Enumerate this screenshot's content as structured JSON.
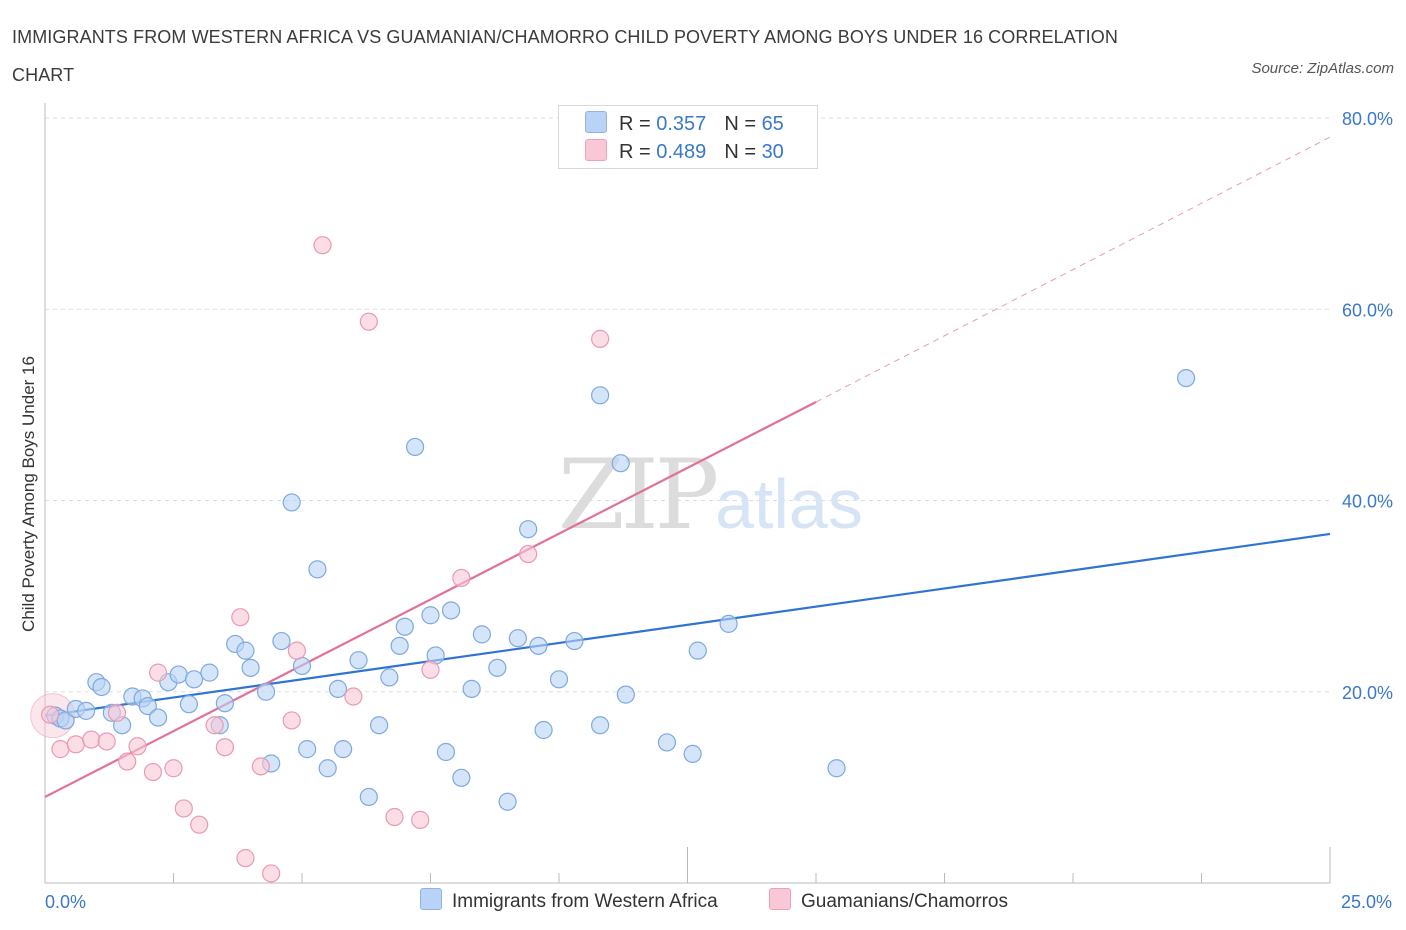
{
  "title": "IMMIGRANTS FROM WESTERN AFRICA VS GUAMANIAN/CHAMORRO CHILD POVERTY AMONG BOYS UNDER 16 CORRELATION CHART",
  "source": "Source: ZipAtlas.com",
  "watermark": {
    "zip": "ZIP",
    "atlas": "atlas"
  },
  "legend_top": [
    {
      "r_label": "R =",
      "r_value": "0.357",
      "n_label": "N =",
      "n_value": "65",
      "color": "#b8d3f5",
      "border": "#8fb4e3"
    },
    {
      "r_label": "R =",
      "r_value": "0.489",
      "n_label": "N =",
      "n_value": "30",
      "color": "#f9c7d6",
      "border": "#eea2b9"
    }
  ],
  "colors": {
    "blue_fill": "#b8d3f5",
    "blue_stroke": "#7fa9dd",
    "blue_line": "#2f74d0",
    "pink_fill": "#f9c7d6",
    "pink_stroke": "#e99ab2",
    "pink_line": "#e0719a",
    "axis_label": "#3a78c9"
  },
  "chart_data": {
    "type": "scatter",
    "xlabel": "",
    "ylabel": "Child Poverty Among Boys Under 16",
    "xlim": [
      0,
      25
    ],
    "ylim": [
      0,
      80
    ],
    "x_tick_labels": [
      "0.0%",
      "25.0%"
    ],
    "y_ticks": [
      20,
      40,
      60,
      80
    ],
    "y_tick_labels": [
      "20.0%",
      "40.0%",
      "60.0%",
      "80.0%"
    ],
    "grid": true,
    "series": [
      {
        "name": "Immigrants from Western Africa",
        "points": [
          [
            0.2,
            17.5
          ],
          [
            0.3,
            17.2
          ],
          [
            0.4,
            17.0
          ],
          [
            0.6,
            18.2
          ],
          [
            0.8,
            18.0
          ],
          [
            1.0,
            21.0
          ],
          [
            1.1,
            20.5
          ],
          [
            1.3,
            17.8
          ],
          [
            1.5,
            16.5
          ],
          [
            1.7,
            19.5
          ],
          [
            1.9,
            19.3
          ],
          [
            2.0,
            18.5
          ],
          [
            2.2,
            17.3
          ],
          [
            2.4,
            21.0
          ],
          [
            2.6,
            21.8
          ],
          [
            2.8,
            18.7
          ],
          [
            2.9,
            21.3
          ],
          [
            3.2,
            22.0
          ],
          [
            3.4,
            16.5
          ],
          [
            3.5,
            18.8
          ],
          [
            3.7,
            25.0
          ],
          [
            3.9,
            24.3
          ],
          [
            4.0,
            22.5
          ],
          [
            4.3,
            20.0
          ],
          [
            4.4,
            12.5
          ],
          [
            4.6,
            25.3
          ],
          [
            4.8,
            39.8
          ],
          [
            5.0,
            22.7
          ],
          [
            5.1,
            14.0
          ],
          [
            5.3,
            32.8
          ],
          [
            5.5,
            12.0
          ],
          [
            5.7,
            20.3
          ],
          [
            5.8,
            14.0
          ],
          [
            6.1,
            23.3
          ],
          [
            6.3,
            9.0
          ],
          [
            6.5,
            16.5
          ],
          [
            6.7,
            21.5
          ],
          [
            6.9,
            24.8
          ],
          [
            7.0,
            26.8
          ],
          [
            7.2,
            45.6
          ],
          [
            7.5,
            28.0
          ],
          [
            7.6,
            23.8
          ],
          [
            7.8,
            13.7
          ],
          [
            7.9,
            28.5
          ],
          [
            8.1,
            11.0
          ],
          [
            8.3,
            20.3
          ],
          [
            8.5,
            26.0
          ],
          [
            8.8,
            22.5
          ],
          [
            9.0,
            8.5
          ],
          [
            9.2,
            25.6
          ],
          [
            9.4,
            37.0
          ],
          [
            9.6,
            24.8
          ],
          [
            9.7,
            16.0
          ],
          [
            10.0,
            21.3
          ],
          [
            10.3,
            25.3
          ],
          [
            10.8,
            51.0
          ],
          [
            10.8,
            16.5
          ],
          [
            11.2,
            43.9
          ],
          [
            11.3,
            19.7
          ],
          [
            12.1,
            14.7
          ],
          [
            12.6,
            13.5
          ],
          [
            12.7,
            24.3
          ],
          [
            13.3,
            27.1
          ],
          [
            15.4,
            12.0
          ],
          [
            22.2,
            52.8
          ]
        ]
      },
      {
        "name": "Guamanians/Chamorros",
        "points": [
          [
            0.1,
            17.6
          ],
          [
            0.3,
            14.0
          ],
          [
            0.6,
            14.5
          ],
          [
            0.9,
            15.0
          ],
          [
            1.2,
            14.8
          ],
          [
            1.4,
            17.8
          ],
          [
            1.6,
            12.7
          ],
          [
            1.8,
            14.3
          ],
          [
            2.1,
            11.6
          ],
          [
            2.2,
            22.0
          ],
          [
            2.5,
            12.0
          ],
          [
            2.7,
            7.8
          ],
          [
            3.0,
            6.1
          ],
          [
            3.3,
            16.5
          ],
          [
            3.5,
            14.2
          ],
          [
            3.8,
            27.8
          ],
          [
            3.9,
            2.6
          ],
          [
            4.2,
            12.2
          ],
          [
            4.4,
            1.0
          ],
          [
            4.8,
            17.0
          ],
          [
            4.9,
            24.3
          ],
          [
            5.4,
            66.7
          ],
          [
            6.0,
            19.5
          ],
          [
            6.3,
            58.7
          ],
          [
            6.8,
            6.9
          ],
          [
            7.3,
            6.6
          ],
          [
            7.5,
            22.3
          ],
          [
            8.1,
            31.9
          ],
          [
            9.4,
            34.4
          ],
          [
            10.8,
            56.9
          ]
        ]
      }
    ],
    "trend_lines": [
      {
        "series": "Immigrants from Western Africa",
        "from": [
          0,
          17.5
        ],
        "to": [
          25,
          36.5
        ],
        "style": "solid"
      },
      {
        "series": "Guamanians/Chamorros",
        "from": [
          0,
          9.0
        ],
        "to": [
          15,
          50.3
        ],
        "style": "solid"
      },
      {
        "series": "Guamanians/Chamorros",
        "from": [
          15,
          50.3
        ],
        "to": [
          25,
          78.0
        ],
        "style": "dashed"
      }
    ]
  }
}
